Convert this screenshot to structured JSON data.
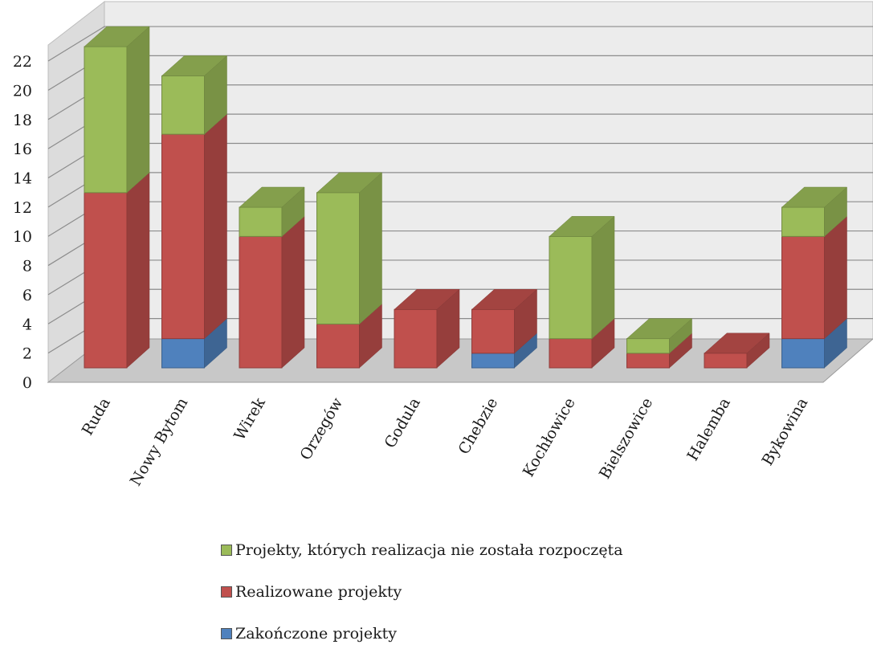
{
  "chart_data": {
    "type": "bar",
    "stacked": true,
    "three_d": true,
    "categories": [
      "Ruda",
      "Nowy Bytom",
      "Wirek",
      "Orzegów",
      "Godula",
      "Chebzie",
      "Kochłowice",
      "Bielszowice",
      "Halemba",
      "Bykowina"
    ],
    "series": [
      {
        "name": "Zakończone projekty",
        "color": "#4f81bd",
        "values": [
          0,
          2,
          0,
          0,
          0,
          1,
          0,
          0,
          0,
          2
        ]
      },
      {
        "name": "Realizowane projekty",
        "color": "#c0504d",
        "values": [
          12,
          14,
          9,
          3,
          4,
          3,
          2,
          1,
          1,
          7
        ]
      },
      {
        "name": "Projekty, których realizacja nie została rozpoczęta",
        "color": "#9bbb59",
        "values": [
          10,
          4,
          2,
          9,
          0,
          0,
          7,
          1,
          0,
          2
        ]
      }
    ],
    "ylim": [
      0,
      22
    ],
    "yticks": [
      "0",
      "2",
      "4",
      "6",
      "8",
      "10",
      "12",
      "14",
      "16",
      "18",
      "20",
      "22"
    ],
    "grid": true,
    "legend_position": "bottom"
  }
}
